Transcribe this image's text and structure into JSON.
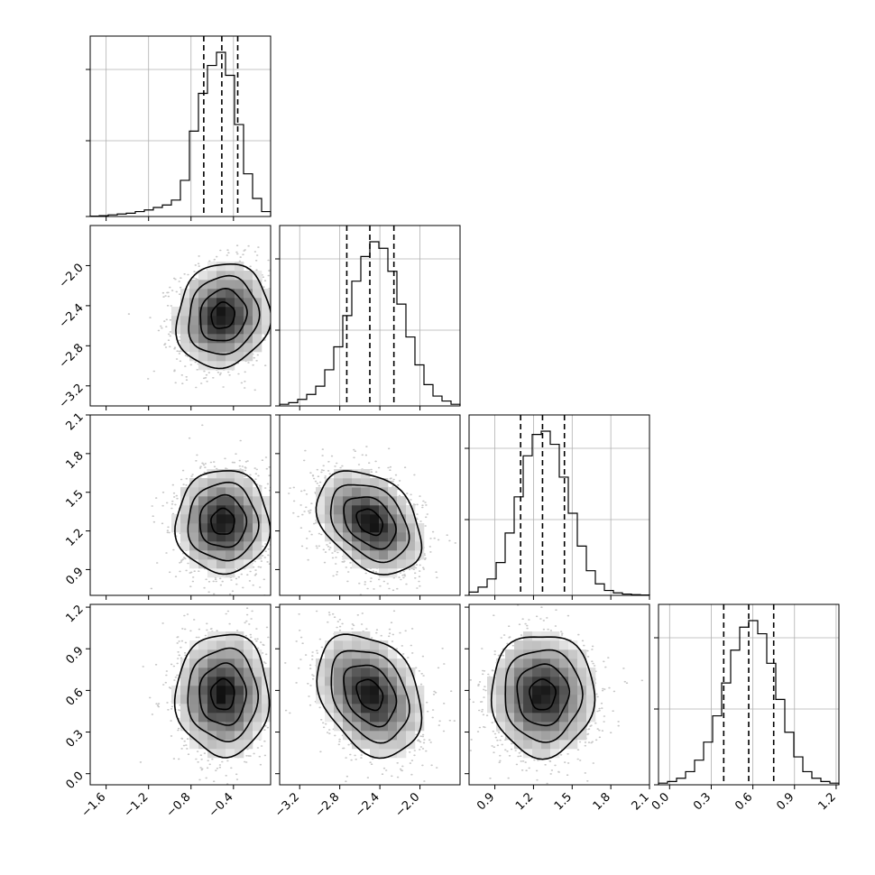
{
  "chart_data": {
    "type": "corner",
    "parameters": [
      {
        "index": 0,
        "range": [
          -1.75,
          -0.05
        ],
        "ticks": [
          -1.6,
          -1.2,
          -0.8,
          -0.4
        ],
        "tick_labels": [
          "−1.6",
          "−1.2",
          "−0.8",
          "−0.4"
        ],
        "quantiles": [
          -0.68,
          -0.51,
          -0.36
        ],
        "hist_bins": [
          -1.75,
          -1.665,
          -1.58,
          -1.495,
          -1.41,
          -1.325,
          -1.24,
          -1.155,
          -1.07,
          -0.985,
          -0.9,
          -0.815,
          -0.73,
          -0.645,
          -0.56,
          -0.475,
          -0.39,
          -0.305,
          -0.22,
          -0.135,
          -0.05
        ],
        "hist_counts": [
          0.002,
          0.005,
          0.01,
          0.015,
          0.02,
          0.03,
          0.04,
          0.055,
          0.07,
          0.1,
          0.22,
          0.52,
          0.75,
          0.92,
          1.0,
          0.86,
          0.56,
          0.26,
          0.11,
          0.03
        ]
      },
      {
        "index": 1,
        "range": [
          -3.4,
          -1.6
        ],
        "ticks": [
          -3.2,
          -2.8,
          -2.4,
          -2.0
        ],
        "tick_labels": [
          "−3.2",
          "−2.8",
          "−2.4",
          "−2.0"
        ],
        "quantiles": [
          -2.73,
          -2.5,
          -2.26
        ],
        "hist_bins": [
          -3.4,
          -3.31,
          -3.22,
          -3.13,
          -3.04,
          -2.95,
          -2.86,
          -2.77,
          -2.68,
          -2.59,
          -2.5,
          -2.41,
          -2.32,
          -2.23,
          -2.14,
          -2.05,
          -1.96,
          -1.87,
          -1.78,
          -1.69,
          -1.6
        ],
        "hist_counts": [
          0.01,
          0.02,
          0.04,
          0.07,
          0.12,
          0.22,
          0.36,
          0.55,
          0.76,
          0.91,
          1.0,
          0.96,
          0.82,
          0.62,
          0.42,
          0.25,
          0.13,
          0.06,
          0.03,
          0.01
        ]
      },
      {
        "index": 2,
        "range": [
          0.7,
          2.1
        ],
        "ticks": [
          0.9,
          1.2,
          1.5,
          1.8,
          2.1
        ],
        "tick_labels": [
          "0.9",
          "1.2",
          "1.5",
          "1.8",
          "2.1"
        ],
        "quantiles": [
          1.1,
          1.27,
          1.44
        ],
        "hist_bins": [
          0.7,
          0.77,
          0.84,
          0.91,
          0.98,
          1.05,
          1.12,
          1.19,
          1.26,
          1.33,
          1.4,
          1.47,
          1.54,
          1.61,
          1.68,
          1.75,
          1.82,
          1.89,
          1.96,
          2.03,
          2.1
        ],
        "hist_counts": [
          0.02,
          0.05,
          0.1,
          0.2,
          0.38,
          0.6,
          0.85,
          0.98,
          1.0,
          0.92,
          0.72,
          0.5,
          0.3,
          0.15,
          0.07,
          0.03,
          0.015,
          0.008,
          0.004,
          0.002
        ]
      },
      {
        "index": 3,
        "range": [
          -0.08,
          1.22
        ],
        "ticks": [
          0.0,
          0.3,
          0.6,
          0.9,
          1.2
        ],
        "tick_labels": [
          "0.0",
          "0.3",
          "0.6",
          "0.9",
          "1.2"
        ],
        "quantiles": [
          0.39,
          0.57,
          0.75
        ],
        "hist_bins": [
          -0.08,
          -0.015,
          0.05,
          0.115,
          0.18,
          0.245,
          0.31,
          0.375,
          0.44,
          0.505,
          0.57,
          0.635,
          0.7,
          0.765,
          0.83,
          0.895,
          0.96,
          1.025,
          1.09,
          1.155,
          1.22
        ],
        "hist_counts": [
          0.01,
          0.02,
          0.04,
          0.08,
          0.15,
          0.26,
          0.42,
          0.62,
          0.82,
          0.96,
          1.0,
          0.92,
          0.74,
          0.52,
          0.32,
          0.17,
          0.08,
          0.04,
          0.02,
          0.01
        ]
      }
    ],
    "pairs": [
      {
        "x": 0,
        "y": 1,
        "center": [
          -0.5,
          -2.5
        ],
        "sigma": [
          0.22,
          0.26
        ],
        "rho": 0.1
      },
      {
        "x": 0,
        "y": 2,
        "center": [
          -0.5,
          1.27
        ],
        "sigma": [
          0.22,
          0.2
        ],
        "rho": 0.0
      },
      {
        "x": 1,
        "y": 2,
        "center": [
          -2.5,
          1.27
        ],
        "sigma": [
          0.26,
          0.2
        ],
        "rho": -0.35
      },
      {
        "x": 0,
        "y": 3,
        "center": [
          -0.5,
          0.57
        ],
        "sigma": [
          0.22,
          0.22
        ],
        "rho": 0.0
      },
      {
        "x": 1,
        "y": 3,
        "center": [
          -2.5,
          0.57
        ],
        "sigma": [
          0.26,
          0.22
        ],
        "rho": -0.3
      },
      {
        "x": 2,
        "y": 3,
        "center": [
          1.27,
          0.57
        ],
        "sigma": [
          0.2,
          0.22
        ],
        "rho": 0.0
      }
    ],
    "contour_levels_sigma": [
      0.5,
      1.0,
      1.5,
      2.0
    ],
    "density_grid_bins": 20,
    "grid": true,
    "colors": {
      "axes": "#000000",
      "grid": "#b0b0b0",
      "points": "#000000",
      "hist": "#000000",
      "quantile_lines": "#000000"
    }
  }
}
